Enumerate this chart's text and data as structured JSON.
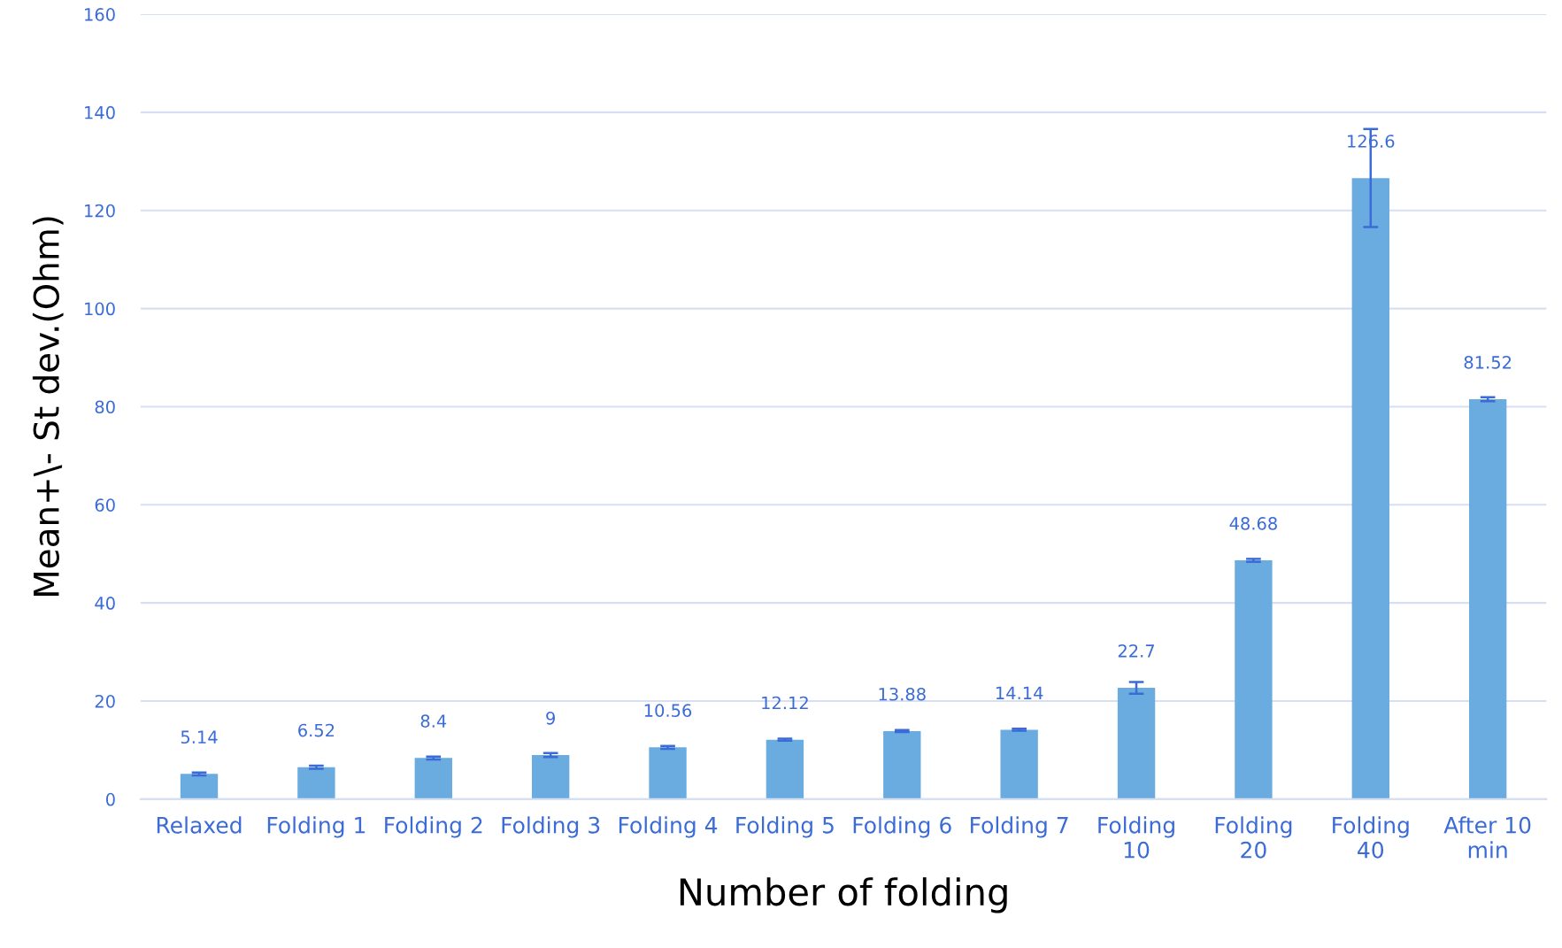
{
  "chart_data": {
    "type": "bar",
    "xlabel": "Number of folding",
    "ylabel": "Mean+\\- St dev.(Ohm)",
    "categories": [
      "Relaxed",
      "Folding 1",
      "Folding 2",
      "Folding 3",
      "Folding 4",
      "Folding 5",
      "Folding 6",
      "Folding 7",
      "Folding 10",
      "Folding 20",
      "Folding 40",
      "After 10 min"
    ],
    "values": [
      5.14,
      6.52,
      8.4,
      9,
      10.56,
      12.12,
      13.88,
      14.14,
      22.7,
      48.68,
      126.6,
      81.52
    ],
    "errors": [
      0.3,
      0.3,
      0.3,
      0.4,
      0.3,
      0.2,
      0.2,
      0.2,
      1.2,
      0.3,
      10,
      0.4
    ],
    "color": "#6aabe0",
    "ylim": [
      0,
      160
    ],
    "yticks": [
      0,
      20,
      40,
      60,
      80,
      100,
      120,
      140,
      160
    ],
    "grid": "y",
    "data_labels": true
  }
}
